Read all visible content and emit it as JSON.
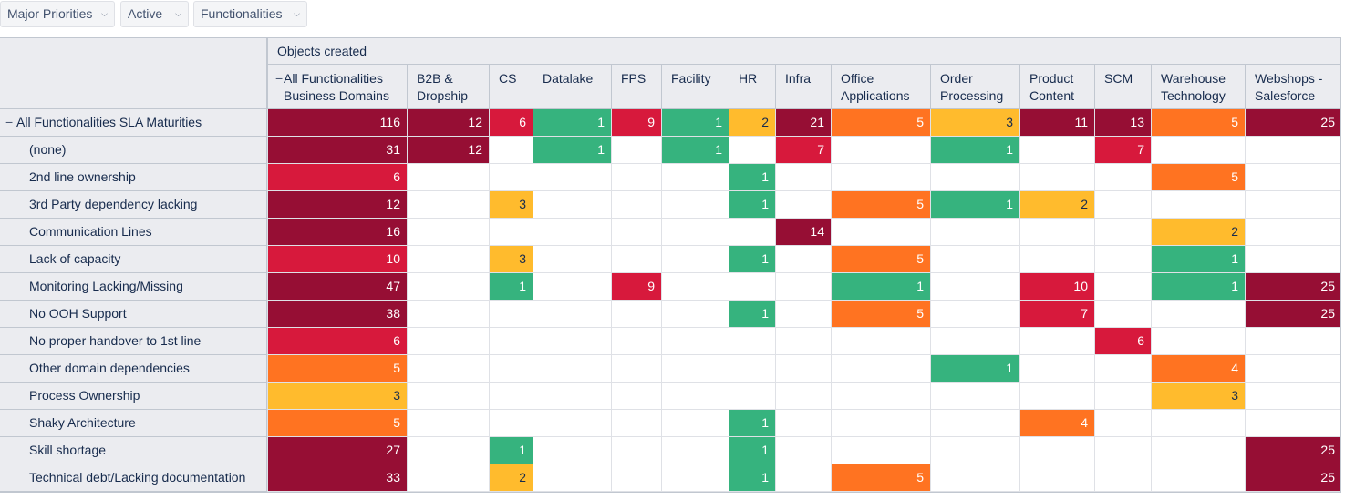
{
  "filters": [
    {
      "label": "Major Priorities"
    },
    {
      "label": "Active"
    },
    {
      "label": "Functionalities"
    }
  ],
  "measure_label": "Objects created",
  "row_dimension_label": "All Functionalities SLA Maturities",
  "columns": [
    {
      "label": "All Functionalities Business Domains"
    },
    {
      "label": "B2B & Dropship"
    },
    {
      "label": "CS"
    },
    {
      "label": "Datalake"
    },
    {
      "label": "FPS"
    },
    {
      "label": "Facility"
    },
    {
      "label": "HR"
    },
    {
      "label": "Infra"
    },
    {
      "label": "Office Applications"
    },
    {
      "label": "Order Processing"
    },
    {
      "label": "Product Content"
    },
    {
      "label": "SCM"
    },
    {
      "label": "Warehouse Technology"
    },
    {
      "label": "Webshops - Salesforce"
    }
  ],
  "rows": [
    {
      "label": "All Functionalities SLA Maturities",
      "values": [
        116,
        12,
        6,
        1,
        9,
        1,
        2,
        21,
        5,
        3,
        11,
        13,
        5,
        25
      ]
    },
    {
      "label": "(none)",
      "values": [
        31,
        12,
        null,
        1,
        null,
        1,
        null,
        7,
        null,
        1,
        null,
        7,
        null,
        null
      ]
    },
    {
      "label": "2nd line ownership",
      "values": [
        6,
        null,
        null,
        null,
        null,
        null,
        1,
        null,
        null,
        null,
        null,
        null,
        5,
        null
      ]
    },
    {
      "label": "3rd Party dependency lacking",
      "values": [
        12,
        null,
        3,
        null,
        null,
        null,
        1,
        null,
        5,
        1,
        2,
        null,
        null,
        null
      ]
    },
    {
      "label": "Communication Lines",
      "values": [
        16,
        null,
        null,
        null,
        null,
        null,
        null,
        14,
        null,
        null,
        null,
        null,
        2,
        null
      ]
    },
    {
      "label": "Lack of capacity",
      "values": [
        10,
        null,
        3,
        null,
        null,
        null,
        1,
        null,
        5,
        null,
        null,
        null,
        1,
        null
      ]
    },
    {
      "label": "Monitoring Lacking/Missing",
      "values": [
        47,
        null,
        1,
        null,
        9,
        null,
        null,
        null,
        1,
        null,
        10,
        null,
        1,
        25
      ]
    },
    {
      "label": "No OOH Support",
      "values": [
        38,
        null,
        null,
        null,
        null,
        null,
        1,
        null,
        5,
        null,
        7,
        null,
        null,
        25
      ]
    },
    {
      "label": "No proper handover to 1st line",
      "values": [
        6,
        null,
        null,
        null,
        null,
        null,
        null,
        null,
        null,
        null,
        null,
        6,
        null,
        null
      ]
    },
    {
      "label": "Other domain dependencies",
      "values": [
        5,
        null,
        null,
        null,
        null,
        null,
        null,
        null,
        null,
        1,
        null,
        null,
        4,
        null
      ]
    },
    {
      "label": "Process Ownership",
      "values": [
        3,
        null,
        null,
        null,
        null,
        null,
        null,
        null,
        null,
        null,
        null,
        null,
        3,
        null
      ]
    },
    {
      "label": "Shaky Architecture",
      "values": [
        5,
        null,
        null,
        null,
        null,
        null,
        1,
        null,
        null,
        null,
        4,
        null,
        null,
        null
      ]
    },
    {
      "label": "Skill shortage",
      "values": [
        27,
        null,
        1,
        null,
        null,
        null,
        1,
        null,
        null,
        null,
        null,
        null,
        null,
        25
      ]
    },
    {
      "label": "Technical debt/Lacking documentation",
      "values": [
        33,
        null,
        2,
        null,
        null,
        null,
        1,
        null,
        5,
        null,
        null,
        null,
        null,
        25
      ]
    }
  ],
  "cell_colors": {
    "1": "#36b37e",
    "2": "#ffbb2d",
    "3": "#ffbb2d",
    "4": "#ff7321",
    "5": "#ff7321",
    "6": "#d7193c",
    "7": "#d7193c",
    "9": "#d7193c",
    "10": "#d7193c",
    "high": "#960e34"
  },
  "icons": {
    "expand": "minus-icon",
    "dropdown": "chevron-down-icon"
  }
}
